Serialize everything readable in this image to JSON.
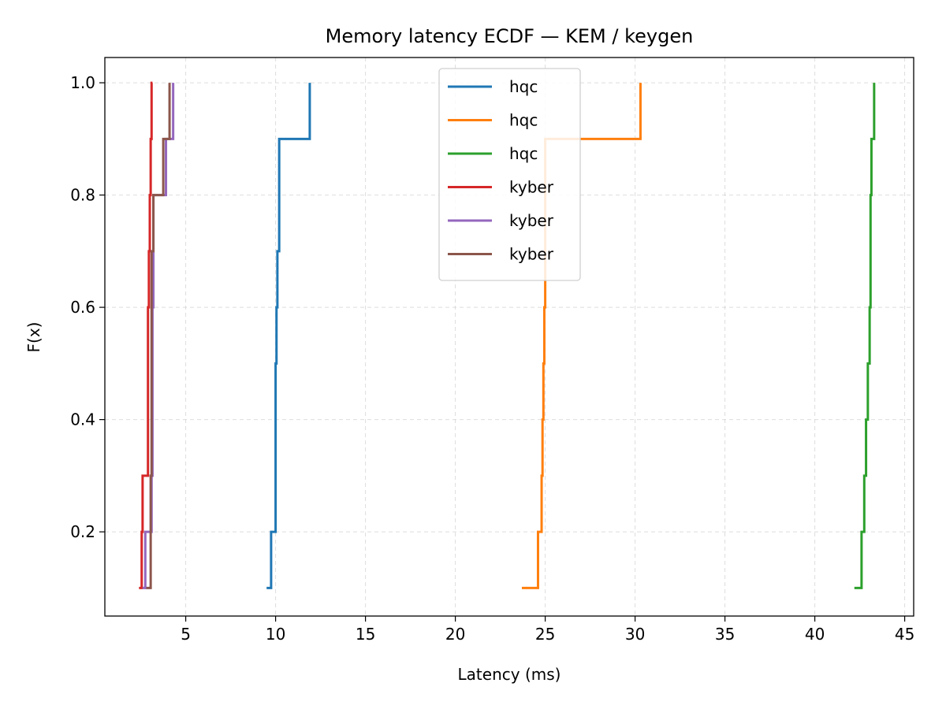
{
  "chart_data": {
    "type": "line",
    "step": "post",
    "title": "Memory latency ECDF — KEM / keygen",
    "xlabel": "Latency (ms)",
    "ylabel": "F(x)",
    "xlim": [
      0.5,
      45.5
    ],
    "ylim": [
      0.05,
      1.045
    ],
    "xticks": [
      5,
      10,
      15,
      20,
      25,
      30,
      35,
      40,
      45
    ],
    "yticks": [
      0.2,
      0.4,
      0.6,
      0.8,
      1.0
    ],
    "grid": true,
    "legend_position": "upper center",
    "series": [
      {
        "name": "hqc",
        "color": "#1f77b4",
        "x": [
          9.5,
          9.75,
          10.0,
          10.0,
          10.0,
          10.05,
          10.1,
          10.2,
          11.9,
          11.9
        ],
        "y": [
          0.1,
          0.2,
          0.3,
          0.4,
          0.5,
          0.6,
          0.7,
          0.9,
          1.0,
          1.0
        ]
      },
      {
        "name": "hqc",
        "color": "#ff7f0e",
        "x": [
          23.7,
          24.6,
          24.8,
          24.85,
          24.9,
          24.95,
          25.0,
          25.0,
          30.3,
          30.3
        ],
        "y": [
          0.1,
          0.2,
          0.3,
          0.4,
          0.5,
          0.6,
          0.7,
          0.9,
          1.0,
          1.0
        ]
      },
      {
        "name": "hqc",
        "color": "#2ca02c",
        "x": [
          42.2,
          42.6,
          42.75,
          42.85,
          42.95,
          43.05,
          43.1,
          43.15,
          43.3,
          43.3
        ],
        "y": [
          0.1,
          0.2,
          0.3,
          0.4,
          0.5,
          0.6,
          0.8,
          0.9,
          1.0,
          1.0
        ]
      },
      {
        "name": "kyber",
        "color": "#d62728",
        "x": [
          2.4,
          2.55,
          2.6,
          2.9,
          2.95,
          3.0,
          3.05,
          3.1,
          3.15
        ],
        "y": [
          0.1,
          0.2,
          0.3,
          0.6,
          0.7,
          0.8,
          0.9,
          1.0,
          1.0
        ]
      },
      {
        "name": "kyber",
        "color": "#9467bd",
        "x": [
          2.6,
          2.75,
          3.1,
          3.15,
          3.2,
          3.9,
          4.3,
          4.3
        ],
        "y": [
          0.1,
          0.2,
          0.3,
          0.6,
          0.8,
          0.9,
          1.0,
          1.0
        ]
      },
      {
        "name": "kyber",
        "color": "#8c564b",
        "x": [
          2.8,
          3.05,
          3.1,
          3.2,
          3.75,
          4.1,
          4.1
        ],
        "y": [
          0.1,
          0.3,
          0.7,
          0.8,
          0.9,
          1.0,
          1.0
        ]
      }
    ]
  }
}
